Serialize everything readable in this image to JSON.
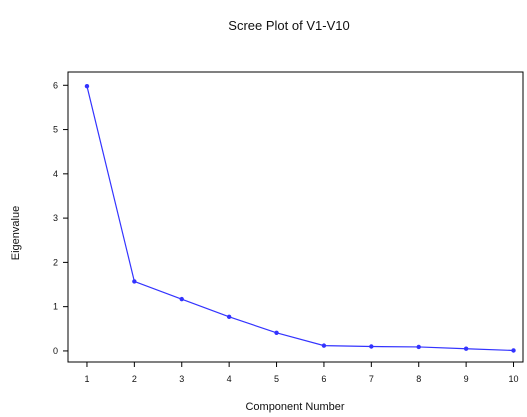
{
  "chart_data": {
    "type": "line",
    "title": "Scree Plot of V1-V10",
    "xlabel": "Component Number",
    "ylabel": "Eigenvalue",
    "x": [
      1,
      2,
      3,
      4,
      5,
      6,
      7,
      8,
      9,
      10
    ],
    "series": [
      {
        "values": [
          5.98,
          1.57,
          1.17,
          0.77,
          0.41,
          0.12,
          0.1,
          0.09,
          0.05,
          0.01
        ]
      }
    ],
    "xticks": [
      1,
      2,
      3,
      4,
      5,
      6,
      7,
      8,
      9,
      10
    ],
    "yticks": [
      0,
      1,
      2,
      3,
      4,
      5,
      6
    ],
    "xlim": [
      0.6,
      10.2
    ],
    "ylim": [
      -0.25,
      6.3
    ],
    "grid": false,
    "legend": "none",
    "line_color": "#3333ff"
  }
}
